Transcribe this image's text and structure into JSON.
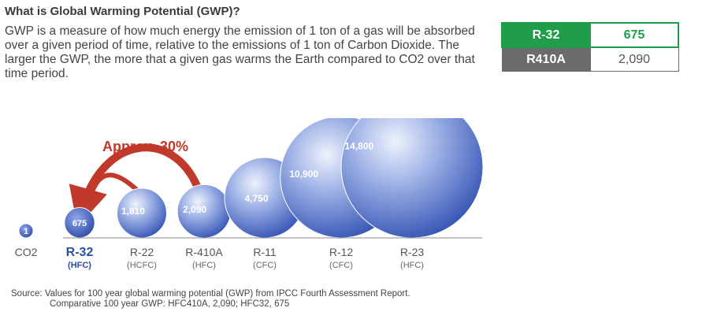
{
  "header": {
    "title": "What is Global Warming Potential (GWP)?",
    "description": "GWP is a measure of how much energy the emission of 1 ton of a gas will be absorbed over a given period of time, relative to the emissions of 1 ton of Carbon Dioxide. The larger the GWP, the more that a given gas warms the Earth compared to CO2 over that time period."
  },
  "comparison_table": {
    "rows": [
      {
        "name": "R-32",
        "value": "675"
      },
      {
        "name": "R410A",
        "value": "2,090"
      }
    ],
    "colors": {
      "r32": "#1f9d48",
      "r410a": "#6b6b6b"
    }
  },
  "chart_data": {
    "type": "bubble",
    "categories": [
      "CO2",
      "R-32",
      "R-22",
      "R-410A",
      "R-11",
      "R-12",
      "R-23"
    ],
    "sublabels": [
      "",
      "(HFC)",
      "(HCFC)",
      "(HFC)",
      "(CFC)",
      "(CFC)",
      "(HFC)"
    ],
    "values": [
      1,
      675,
      1810,
      2090,
      4750,
      10900,
      14800
    ],
    "value_labels": [
      "1",
      "675",
      "1,810",
      "2,090",
      "4,750",
      "10,900",
      "14,800"
    ],
    "annotation": "Approx. 30%",
    "highlight": "R-32",
    "colors": {
      "bubble": "#3f63c4",
      "arrow": "#c0392b",
      "highlight_label": "#2b4fa8"
    }
  },
  "source": {
    "line1": "Source: Values for 100 year global warming potential (GWP) from IPCC Fourth Assessment Report.",
    "line2": "Comparative 100 year GWP: HFC410A, 2,090; HFC32, 675"
  }
}
